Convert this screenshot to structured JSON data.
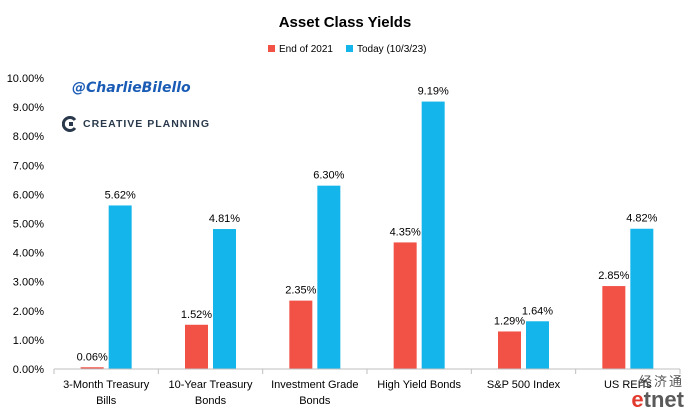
{
  "chart_data": {
    "type": "bar",
    "title": "Asset Class Yields",
    "categories": [
      [
        "3-Month Treasury",
        "Bills"
      ],
      [
        "10-Year Treasury",
        "Bonds"
      ],
      [
        "Investment Grade",
        "Bonds"
      ],
      [
        "High Yield Bonds"
      ],
      [
        "S&P 500 Index"
      ],
      [
        "US REITs"
      ]
    ],
    "series": [
      {
        "name": "End of 2021",
        "color": "#f25246",
        "values": [
          0.06,
          1.52,
          2.35,
          4.35,
          1.29,
          2.85
        ]
      },
      {
        "name": "Today (10/3/23)",
        "color": "#13b5ea",
        "values": [
          5.62,
          4.81,
          6.3,
          9.19,
          1.64,
          4.82
        ]
      }
    ],
    "value_labels": [
      [
        "0.06%",
        "1.52%",
        "2.35%",
        "4.35%",
        "1.29%",
        "2.85%"
      ],
      [
        "5.62%",
        "4.81%",
        "6.30%",
        "9.19%",
        "1.64%",
        "4.82%"
      ]
    ],
    "y_ticks": [
      "0.00%",
      "1.00%",
      "2.00%",
      "3.00%",
      "4.00%",
      "5.00%",
      "6.00%",
      "7.00%",
      "8.00%",
      "9.00%",
      "10.00%"
    ],
    "ylim": [
      0,
      10
    ],
    "legend_position": "top-center",
    "grid": false
  },
  "annotations": {
    "handle": "@CharlieBilello",
    "brand": "CREATIVE PLANNING"
  },
  "watermark": {
    "chinese": "经济通",
    "logo_e": "e",
    "logo_rest": "tnet"
  }
}
